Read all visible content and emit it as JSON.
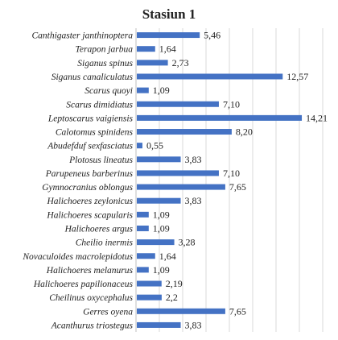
{
  "chart_data": {
    "type": "bar",
    "orientation": "horizontal",
    "title": "Stasiun 1",
    "categories": [
      "Canthigaster janthinoptera",
      "Terapon jarbua",
      "Siganus spinus",
      "Siganus canaliculatus",
      "Scarus quoyi",
      "Scarus dimidiatus",
      "Leptoscarus vaigiensis",
      "Calotomus spinidens",
      "Abudefduf sexfasciatus",
      "Plotosus lineatus",
      "Parupeneus barberinus",
      "Gymnocranius oblongus",
      "Halichoeres zeylonicus",
      "Halichoeres scapularis",
      "Halichoeres argus",
      "Cheilio inermis",
      "Novaculoides macrolepidotus",
      "Halichoeres melanurus",
      "Halichoeres papilionaceus",
      "Cheilinus oxycephalus",
      "Gerres oyena",
      "Acanthurus triostegus"
    ],
    "values": [
      5.46,
      1.64,
      2.73,
      12.57,
      1.09,
      7.1,
      14.21,
      8.2,
      0.55,
      3.83,
      7.1,
      7.65,
      3.83,
      1.09,
      1.09,
      3.28,
      1.64,
      1.09,
      2.19,
      2.2,
      7.65,
      3.83
    ],
    "value_labels": [
      "5,46",
      "1,64",
      "2,73",
      "12,57",
      "1,09",
      "7,10",
      "14,21",
      "8,20",
      "0,55",
      "3,83",
      "7,10",
      "7,65",
      "3,83",
      "1,09",
      "1,09",
      "3,28",
      "1,64",
      "1,09",
      "2,19",
      "2,2",
      "7,65",
      "3,83"
    ],
    "xlim": [
      0,
      16
    ],
    "grid": true,
    "legend": "none",
    "bar_color": "#4472c4"
  }
}
